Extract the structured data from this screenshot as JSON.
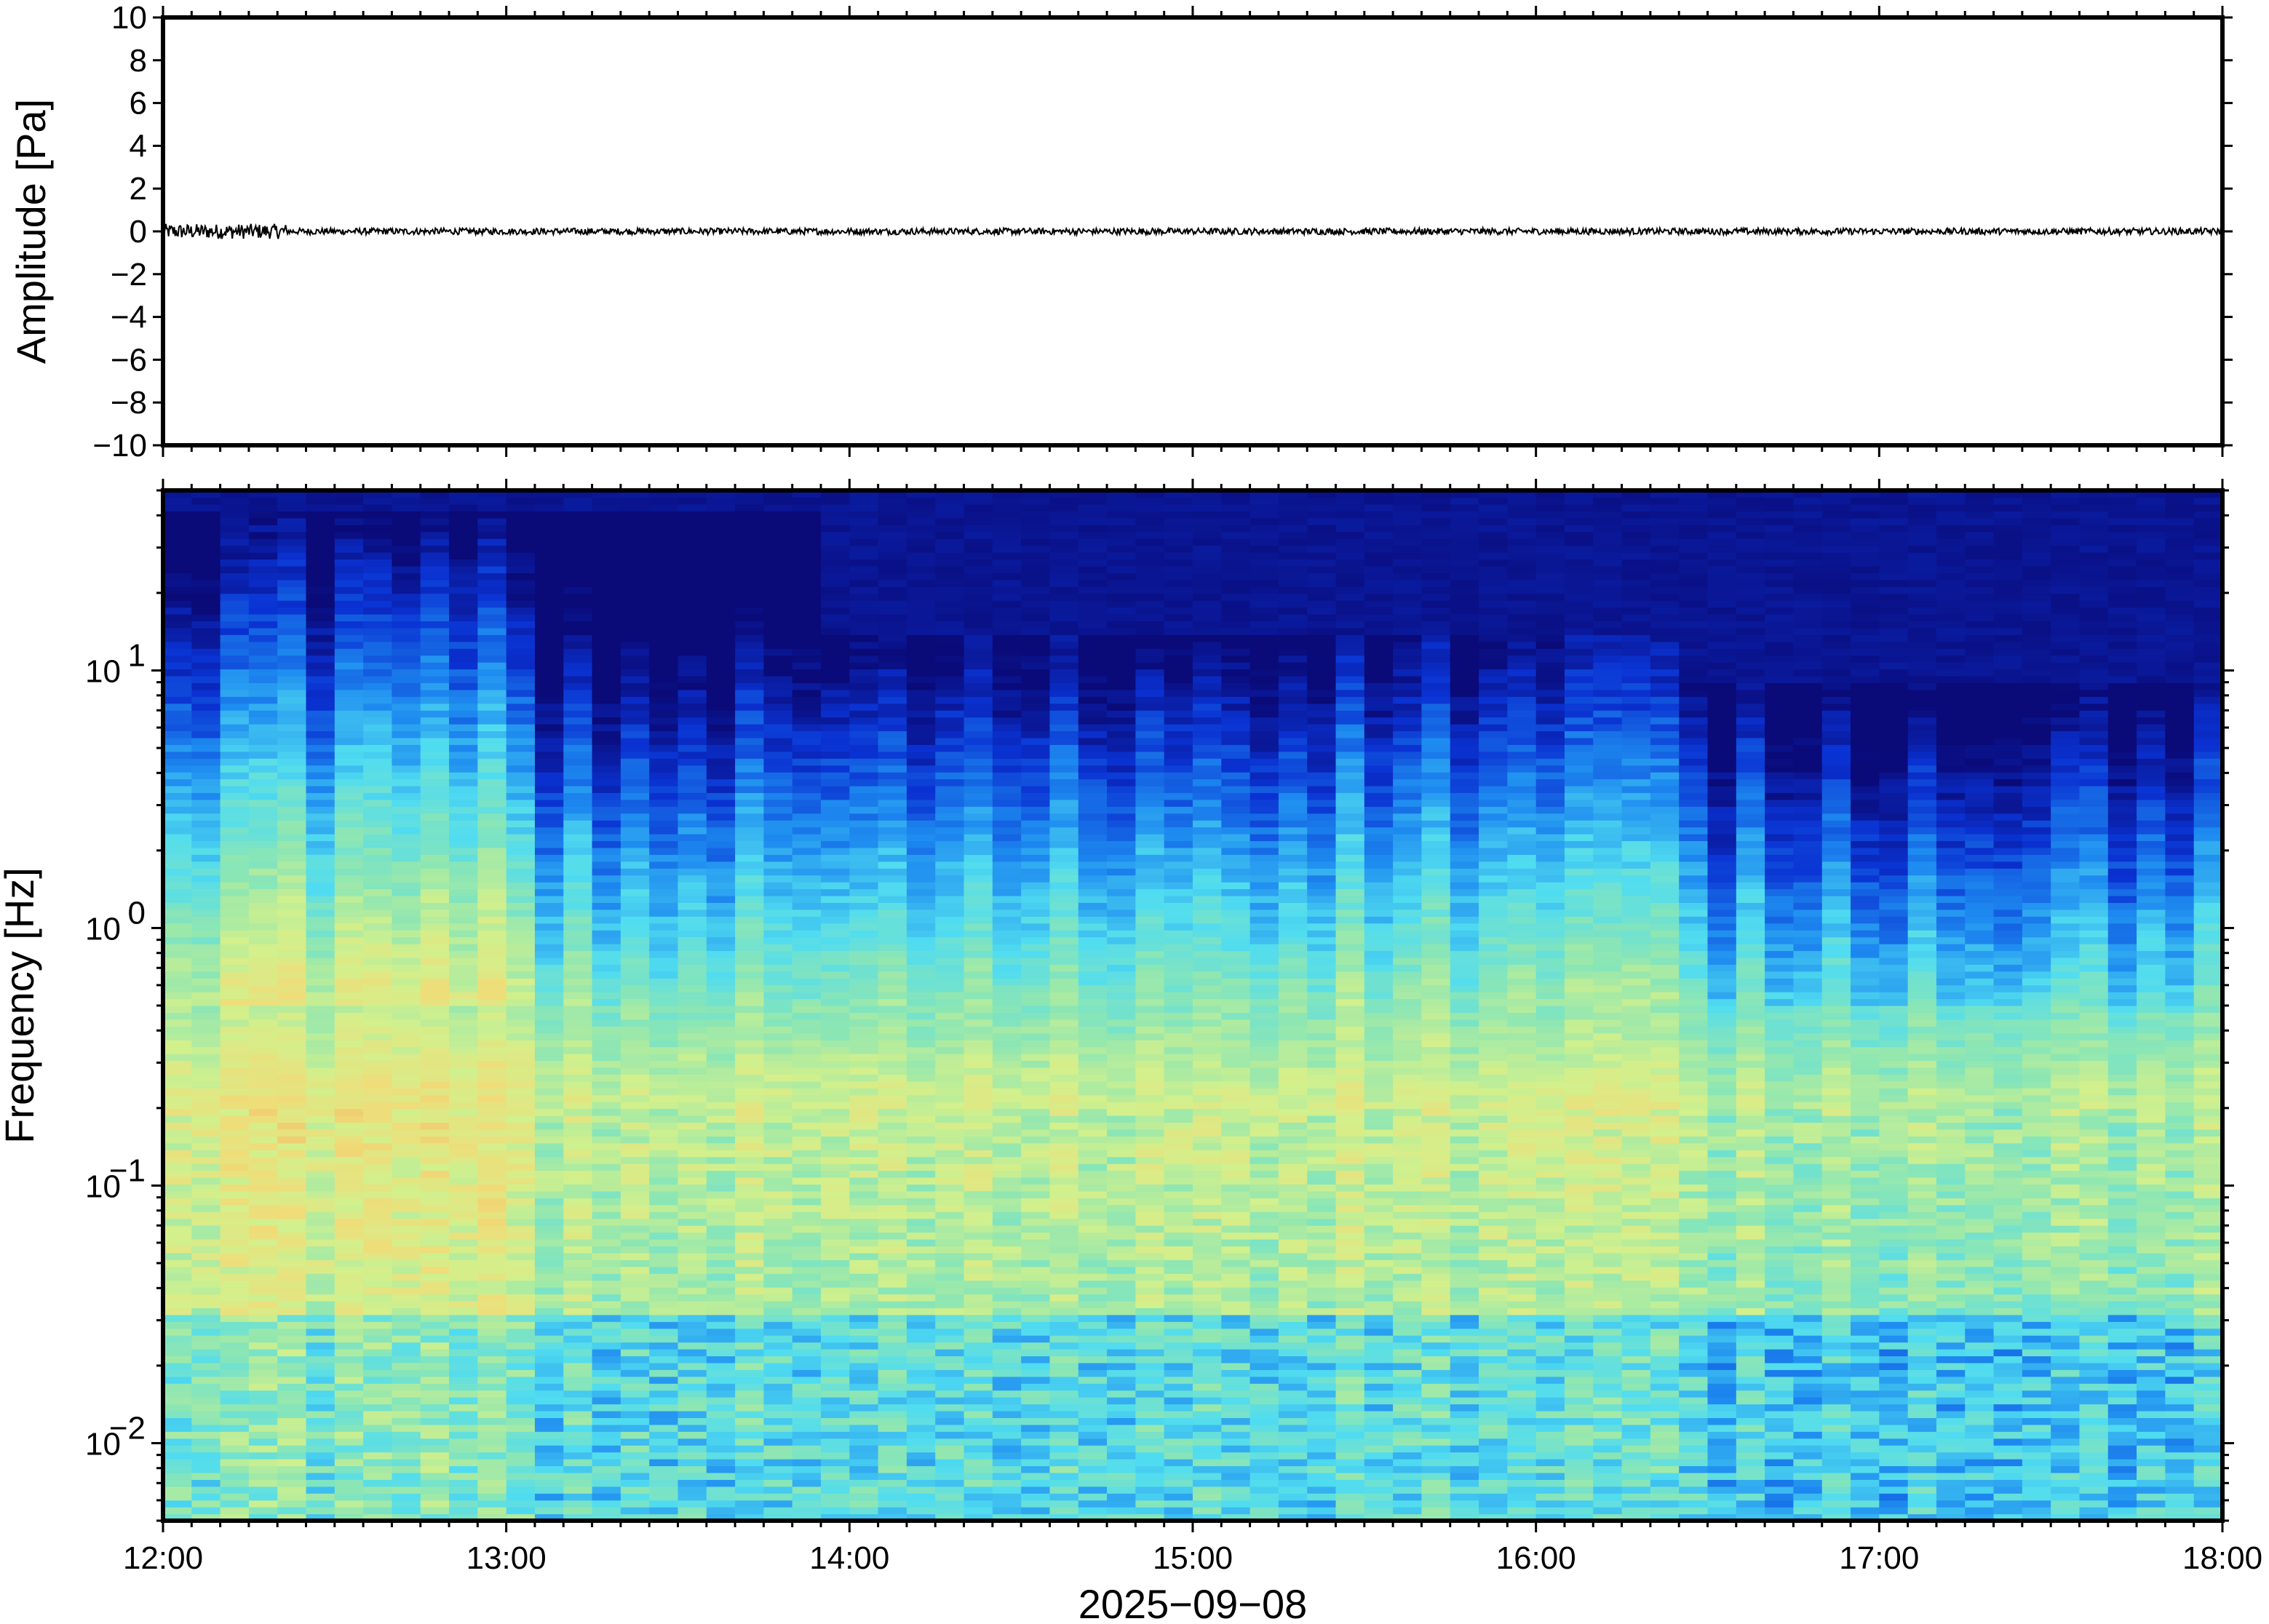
{
  "chart_data": [
    {
      "type": "line",
      "ylabel": "Amplitude [Pa]",
      "ylim": [
        -10,
        10
      ],
      "yticks": [
        "10",
        "8",
        "6",
        "4",
        "2",
        "0",
        "−2",
        "−4",
        "−6",
        "−8",
        "−10"
      ],
      "ytick_values": [
        10,
        8,
        6,
        4,
        2,
        0,
        -2,
        -4,
        -6,
        -8,
        -10
      ],
      "xlim": [
        "2025-09-08 12:00",
        "2025-09-08 18:00"
      ],
      "series": [
        {
          "values_description_free": true,
          "x_range": [
            "12:00",
            "18:00"
          ],
          "y_range": [
            -0.3,
            0.3
          ]
        }
      ],
      "line_color": "#000000",
      "grid": false
    },
    {
      "type": "heatmap",
      "ylabel": "Frequency [Hz]",
      "yscale": "log",
      "ylim": [
        0.005,
        50
      ],
      "ytick_values": [
        0.01,
        0.1,
        1,
        10
      ],
      "yticks": [
        {
          "base": "10",
          "exp": "−2"
        },
        {
          "base": "10",
          "exp": "−1"
        },
        {
          "base": "10",
          "exp": "0"
        },
        {
          "base": "10",
          "exp": "1"
        }
      ],
      "xlabel": "2025−09−08",
      "xticks": [
        "12:00",
        "13:00",
        "14:00",
        "15:00",
        "16:00",
        "17:00",
        "18:00"
      ],
      "xlim": [
        "2025-09-08 12:00",
        "2025-09-08 18:00"
      ],
      "colormap": [
        "#0a0a78",
        "#0a32d2",
        "#1e8cf0",
        "#50dcf0",
        "#8ce6b4",
        "#d2f08c",
        "#f0dc78",
        "#f0aa64"
      ],
      "grid": false
    }
  ]
}
